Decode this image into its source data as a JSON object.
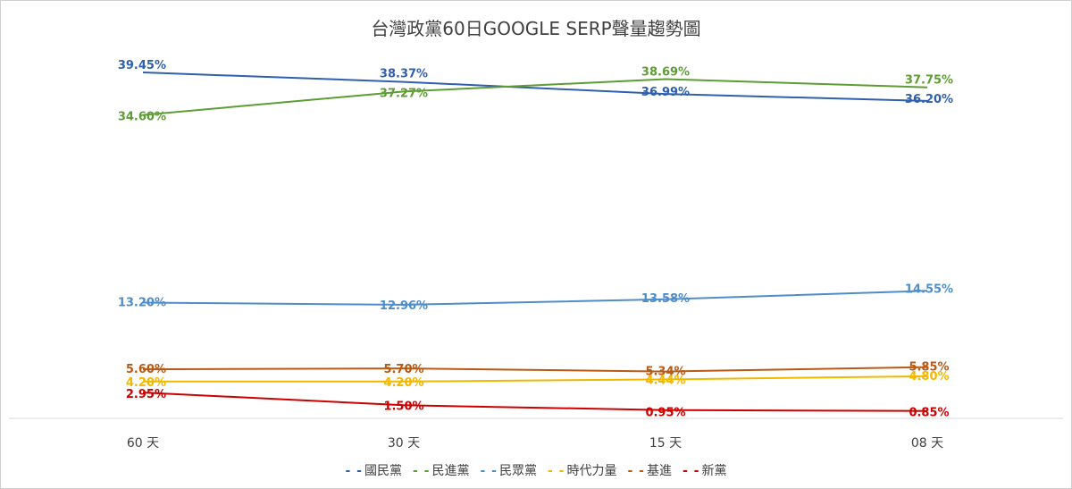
{
  "chart_data": {
    "type": "line",
    "title": "台灣政黨60日GOOGLE SERP聲量趨勢圖",
    "categories": [
      "60 天",
      "30 天",
      "15 天",
      "08 天"
    ],
    "ylim": [
      0,
      42
    ],
    "grid": false,
    "legend_position": "bottom",
    "series": [
      {
        "name": "國民黨",
        "color": "#2f5fad",
        "labels": [
          "39.45%",
          "38.37%",
          "36.99%",
          "36.20%"
        ],
        "values": [
          39.45,
          38.37,
          36.99,
          36.2
        ]
      },
      {
        "name": "民進黨",
        "color": "#5e9c34",
        "labels": [
          "34.60%",
          "37.27%",
          "38.69%",
          "37.75%"
        ],
        "values": [
          34.6,
          37.27,
          38.69,
          37.75
        ]
      },
      {
        "name": "民眾黨",
        "color": "#4f8dc9",
        "labels": [
          "13.20%",
          "12.96%",
          "13.58%",
          "14.55%"
        ],
        "values": [
          13.2,
          12.96,
          13.58,
          14.55
        ]
      },
      {
        "name": "時代力量",
        "color": "#f2b800",
        "labels": [
          "4.20%",
          "4.20%",
          "4.44%",
          "4.80%"
        ],
        "values": [
          4.2,
          4.2,
          4.44,
          4.8
        ]
      },
      {
        "name": "基進",
        "color": "#b85a14",
        "labels": [
          "5.60%",
          "5.70%",
          "5.34%",
          "5.85%"
        ],
        "values": [
          5.6,
          5.7,
          5.34,
          5.85
        ]
      },
      {
        "name": "新黨",
        "color": "#cc0000",
        "labels": [
          "2.95%",
          "1.50%",
          "0.95%",
          "0.85%"
        ],
        "values": [
          2.95,
          1.5,
          0.95,
          0.85
        ]
      }
    ]
  }
}
